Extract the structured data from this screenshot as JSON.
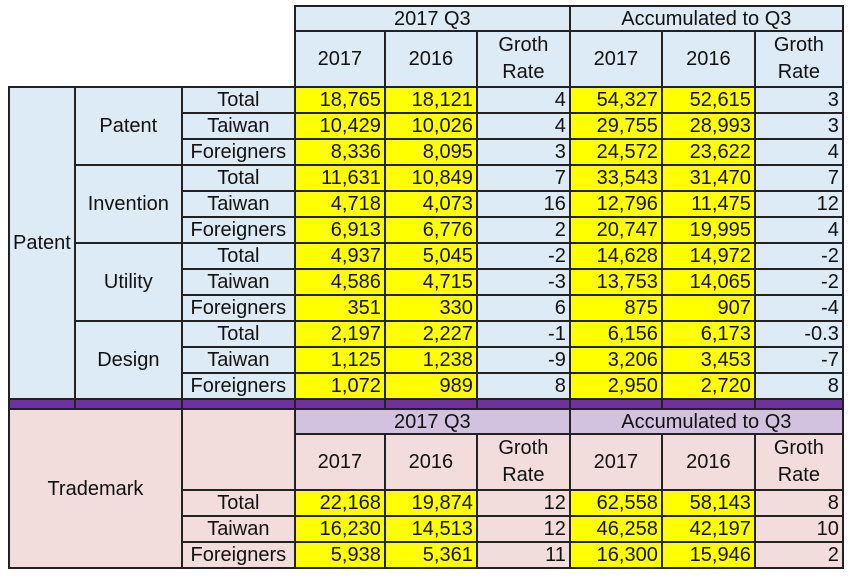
{
  "header": {
    "period": "2017 Q3",
    "accum": "Accumulated to Q3",
    "y2017": "2017",
    "y2016": "2016",
    "rate": "Groth Rate"
  },
  "patent": {
    "label": "Patent",
    "groups": [
      {
        "name": "Patent",
        "rows": [
          {
            "label": "Total",
            "q2017": "18,765",
            "q2016": "18,121",
            "qrate": "4",
            "a2017": "54,327",
            "a2016": "52,615",
            "arate": "3"
          },
          {
            "label": "Taiwan",
            "q2017": "10,429",
            "q2016": "10,026",
            "qrate": "4",
            "a2017": "29,755",
            "a2016": "28,993",
            "arate": "3"
          },
          {
            "label": "Foreigners",
            "q2017": "8,336",
            "q2016": "8,095",
            "qrate": "3",
            "a2017": "24,572",
            "a2016": "23,622",
            "arate": "4"
          }
        ]
      },
      {
        "name": "Invention",
        "rows": [
          {
            "label": "Total",
            "q2017": "11,631",
            "q2016": "10,849",
            "qrate": "7",
            "a2017": "33,543",
            "a2016": "31,470",
            "arate": "7"
          },
          {
            "label": "Taiwan",
            "q2017": "4,718",
            "q2016": "4,073",
            "qrate": "16",
            "a2017": "12,796",
            "a2016": "11,475",
            "arate": "12"
          },
          {
            "label": "Foreigners",
            "q2017": "6,913",
            "q2016": "6,776",
            "qrate": "2",
            "a2017": "20,747",
            "a2016": "19,995",
            "arate": "4"
          }
        ]
      },
      {
        "name": "Utility",
        "rows": [
          {
            "label": "Total",
            "q2017": "4,937",
            "q2016": "5,045",
            "qrate": "-2",
            "a2017": "14,628",
            "a2016": "14,972",
            "arate": "-2"
          },
          {
            "label": "Taiwan",
            "q2017": "4,586",
            "q2016": "4,715",
            "qrate": "-3",
            "a2017": "13,753",
            "a2016": "14,065",
            "arate": "-2"
          },
          {
            "label": "Foreigners",
            "q2017": "351",
            "q2016": "330",
            "qrate": "6",
            "a2017": "875",
            "a2016": "907",
            "arate": "-4"
          }
        ]
      },
      {
        "name": "Design",
        "rows": [
          {
            "label": "Total",
            "q2017": "2,197",
            "q2016": "2,227",
            "qrate": "-1",
            "a2017": "6,156",
            "a2016": "6,173",
            "arate": "-0.3"
          },
          {
            "label": "Taiwan",
            "q2017": "1,125",
            "q2016": "1,238",
            "qrate": "-9",
            "a2017": "3,206",
            "a2016": "3,453",
            "arate": "-7"
          },
          {
            "label": "Foreigners",
            "q2017": "1,072",
            "q2016": "989",
            "qrate": "8",
            "a2017": "2,950",
            "a2016": "2,720",
            "arate": "8"
          }
        ]
      }
    ]
  },
  "trademark": {
    "label": "Trademark",
    "rows": [
      {
        "label": "Total",
        "q2017": "22,168",
        "q2016": "19,874",
        "qrate": "12",
        "a2017": "62,558",
        "a2016": "58,143",
        "arate": "8"
      },
      {
        "label": "Taiwan",
        "q2017": "16,230",
        "q2016": "14,513",
        "qrate": "12",
        "a2017": "46,258",
        "a2016": "42,197",
        "arate": "10"
      },
      {
        "label": "Foreigners",
        "q2017": "5,938",
        "q2016": "5,361",
        "qrate": "11",
        "a2017": "16,300",
        "a2016": "15,946",
        "arate": "2"
      }
    ]
  },
  "colors": {
    "highlight": "#ffff00",
    "patent_bg": "#dcebf5",
    "trademark_bg": "#f3dcdc",
    "trademark_header_bg": "#d3c2df",
    "separator": "#7030a0"
  }
}
